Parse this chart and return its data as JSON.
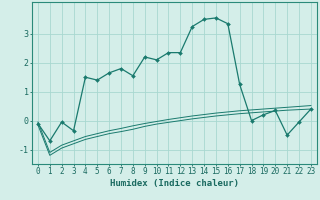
{
  "title": "",
  "xlabel": "Humidex (Indice chaleur)",
  "background_color": "#d4eee9",
  "grid_color": "#a8d8d0",
  "line_color": "#1a7a6e",
  "x_data": [
    0,
    1,
    2,
    3,
    4,
    5,
    6,
    7,
    8,
    9,
    10,
    11,
    12,
    13,
    14,
    15,
    16,
    17,
    18,
    19,
    20,
    21,
    22,
    23
  ],
  "main_y": [
    -0.1,
    -0.7,
    -0.05,
    -0.35,
    1.5,
    1.4,
    1.65,
    1.8,
    1.55,
    2.2,
    2.1,
    2.35,
    2.35,
    3.25,
    3.5,
    3.55,
    3.35,
    1.25,
    0.0,
    0.2,
    0.35,
    -0.5,
    -0.05,
    0.4
  ],
  "line1_y": [
    -0.15,
    -1.2,
    -0.95,
    -0.8,
    -0.65,
    -0.55,
    -0.45,
    -0.38,
    -0.3,
    -0.2,
    -0.12,
    -0.06,
    0.0,
    0.06,
    0.11,
    0.16,
    0.2,
    0.24,
    0.27,
    0.3,
    0.33,
    0.36,
    0.38,
    0.4
  ],
  "line2_y": [
    -0.05,
    -1.1,
    -0.85,
    -0.7,
    -0.55,
    -0.45,
    -0.35,
    -0.27,
    -0.18,
    -0.1,
    -0.03,
    0.04,
    0.1,
    0.16,
    0.21,
    0.26,
    0.3,
    0.34,
    0.37,
    0.4,
    0.43,
    0.46,
    0.49,
    0.52
  ],
  "ylim": [
    -1.5,
    4.1
  ],
  "yticks": [
    -1,
    0,
    1,
    2,
    3
  ],
  "xticks": [
    0,
    1,
    2,
    3,
    4,
    5,
    6,
    7,
    8,
    9,
    10,
    11,
    12,
    13,
    14,
    15,
    16,
    17,
    18,
    19,
    20,
    21,
    22,
    23
  ],
  "tick_fontsize": 5.5,
  "xlabel_fontsize": 6.5
}
